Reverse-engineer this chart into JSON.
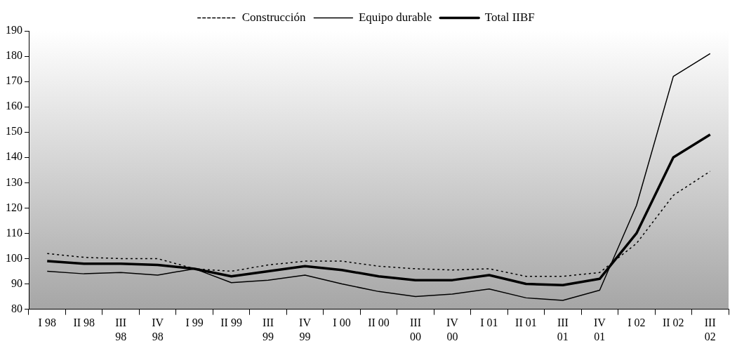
{
  "chart_data": {
    "type": "line",
    "categories": [
      "I 98",
      "II 98",
      "III 98",
      "IV 98",
      "I 99",
      "II 99",
      "III 99",
      "IV 99",
      "I 00",
      "II 00",
      "III 00",
      "IV 00",
      "I 01",
      "II 01",
      "III 01",
      "IV 01",
      "I 02",
      "II 02",
      "III 02"
    ],
    "series": [
      {
        "name": "Construcción",
        "color": "#000000",
        "line_style": "dotted",
        "values": [
          102,
          100.5,
          100,
          100,
          96,
          95,
          97.5,
          99,
          99,
          97,
          96,
          95.5,
          96,
          93,
          93,
          94.5,
          106,
          125,
          134.5
        ]
      },
      {
        "name": "Equipo durable",
        "color": "#000000",
        "line_style": "solid",
        "values": [
          95,
          94,
          94.5,
          93.5,
          96,
          90.5,
          91.5,
          93.5,
          90,
          87,
          85,
          86,
          88,
          84.5,
          83.5,
          87.5,
          121,
          172,
          181
        ]
      },
      {
        "name": "Total IIBF",
        "color": "#000000",
        "line_style": "solid",
        "values": [
          99,
          98,
          98,
          97.5,
          96,
          93,
          95,
          97,
          95.5,
          93,
          91.5,
          91.5,
          93.5,
          90,
          89.5,
          92,
          110,
          140,
          149
        ]
      }
    ],
    "ylim": [
      80,
      190
    ],
    "yticks": [
      80,
      90,
      100,
      110,
      120,
      130,
      140,
      150,
      160,
      170,
      180,
      190
    ],
    "grid": false,
    "legend": "top",
    "marker": "none"
  }
}
